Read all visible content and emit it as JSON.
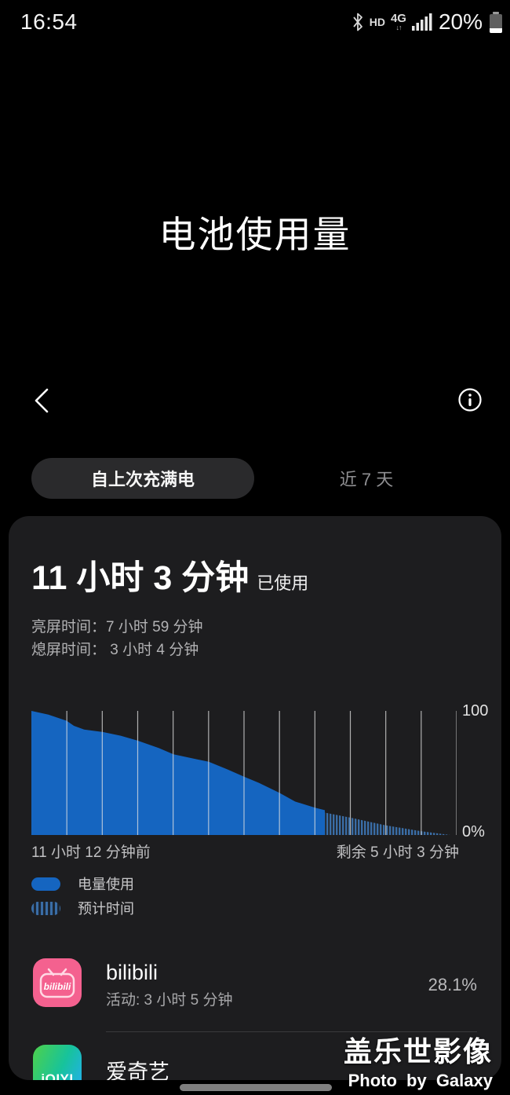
{
  "status_bar": {
    "time": "16:54",
    "hd": "HD",
    "network": "4G",
    "battery_percent": "20%"
  },
  "header": {
    "title": "电池使用量"
  },
  "tabs": {
    "selected": "自上次充满电",
    "other": "近 7 天"
  },
  "summary": {
    "duration": "11 小时 3 分钟",
    "suffix": "已使用",
    "screen_on": "亮屏时间：7 小时 59 分钟",
    "screen_off": "熄屏时间： 3 小时 4 分钟"
  },
  "chart_data": {
    "type": "area",
    "title": "电池使用量图表",
    "ylabel_top": "100",
    "ylabel_bottom": "0%",
    "ylim": [
      0,
      100
    ],
    "x_start_label": "11 小时 12 分钟前",
    "x_end_label": "剩余 5 小时 3 分钟",
    "gridlines": 12,
    "grid_color": "rgba(225,225,225,0.75)",
    "legend_position": "bottom-left",
    "series": [
      {
        "name": "电量使用",
        "style": "solid",
        "color": "#1565c0",
        "points": [
          [
            0,
            100
          ],
          [
            0.04,
            97
          ],
          [
            0.083,
            92
          ],
          [
            0.1,
            88
          ],
          [
            0.124,
            85
          ],
          [
            0.168,
            83
          ],
          [
            0.21,
            80
          ],
          [
            0.25,
            76
          ],
          [
            0.3,
            70
          ],
          [
            0.334,
            65
          ],
          [
            0.375,
            62
          ],
          [
            0.417,
            59
          ],
          [
            0.46,
            53
          ],
          [
            0.5,
            47
          ],
          [
            0.535,
            42
          ],
          [
            0.583,
            34
          ],
          [
            0.62,
            27
          ],
          [
            0.667,
            22
          ],
          [
            0.69,
            20
          ]
        ]
      },
      {
        "name": "预计时间",
        "style": "hatched",
        "color": "#3a6da6",
        "points": [
          [
            0.69,
            18
          ],
          [
            0.75,
            14
          ],
          [
            0.83,
            8
          ],
          [
            0.917,
            3
          ],
          [
            0.985,
            0
          ]
        ]
      }
    ]
  },
  "legend": {
    "usage_label": "电量使用",
    "forecast_label": "预计时间"
  },
  "apps": [
    {
      "name": "bilibili",
      "detail": "活动: 3 小时 5 分钟",
      "percent": "28.1%",
      "icon_text": "bilibili"
    },
    {
      "name": "爱奇艺",
      "icon_text": "iQIYI"
    }
  ],
  "watermark": {
    "line1": "盖乐世影像",
    "line2": "Photo by Galaxy"
  }
}
